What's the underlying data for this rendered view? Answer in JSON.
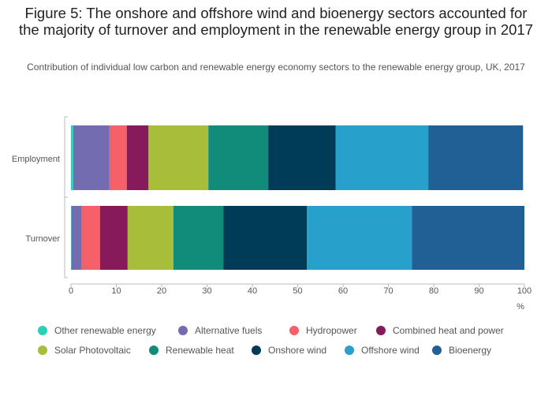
{
  "title": "Figure 5: The onshore and offshore wind and bioenergy sectors accounted for the majority of turnover and employment in the renewable energy group in 2017",
  "subtitle": "Contribution of individual low carbon and renewable energy economy sectors to the renewable energy group, UK, 2017",
  "chart_data": {
    "type": "bar",
    "orientation": "horizontal",
    "stacked": true,
    "title": "Figure 5: The onshore and offshore wind and bioenergy sectors accounted for the majority of turnover and employment in the renewable energy group in 2017",
    "subtitle": "Contribution of individual low carbon and renewable energy economy sectors to the renewable energy group, UK, 2017",
    "categories": [
      "Employment",
      "Turnover"
    ],
    "xlabel": "%",
    "ylabel": "",
    "xlim": [
      0,
      100
    ],
    "xticks": [
      "0",
      "10",
      "20",
      "30",
      "40",
      "50",
      "60",
      "70",
      "80",
      "90",
      "100"
    ],
    "grid": false,
    "legend_position": "bottom",
    "series": [
      {
        "name": "Other renewable energy",
        "color": "#2ad1b7",
        "values": [
          0.5,
          0.1
        ]
      },
      {
        "name": "Alternative fuels",
        "color": "#746cb1",
        "values": [
          8.0,
          2.3
        ]
      },
      {
        "name": "Hydropower",
        "color": "#f66068",
        "values": [
          3.8,
          4.0
        ]
      },
      {
        "name": "Combined heat and power",
        "color": "#871a5b",
        "values": [
          4.8,
          6.1
        ]
      },
      {
        "name": "Solar Photovoltaic",
        "color": "#a8bd3a",
        "values": [
          13.2,
          10.1
        ]
      },
      {
        "name": "Renewable heat",
        "color": "#118c7b",
        "values": [
          13.2,
          11.0
        ]
      },
      {
        "name": "Onshore wind",
        "color": "#003c57",
        "values": [
          14.9,
          18.4
        ]
      },
      {
        "name": "Offshore wind",
        "color": "#27a0cc",
        "values": [
          20.4,
          23.2
        ]
      },
      {
        "name": "Bioenergy",
        "color": "#206095",
        "values": [
          20.9,
          24.8
        ]
      }
    ]
  }
}
